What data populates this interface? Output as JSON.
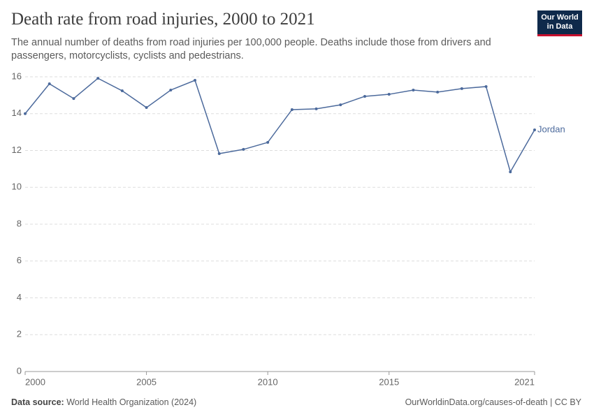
{
  "chart_data": {
    "type": "line",
    "title": "Death rate from road injuries, 2000 to 2021",
    "subtitle": "The annual number of deaths from road injuries per 100,000 people. Deaths include those from drivers and passengers, motorcyclists, cyclists and pedestrians.",
    "logo": [
      "Our World",
      "in Data"
    ],
    "source_label": "Data source:",
    "source": "World Health Organization (2024)",
    "footer": "OurWorldinData.org/causes-of-death | CC BY",
    "x": [
      2000,
      2001,
      2002,
      2003,
      2004,
      2005,
      2006,
      2007,
      2008,
      2009,
      2010,
      2011,
      2012,
      2013,
      2014,
      2015,
      2016,
      2017,
      2018,
      2019,
      2020,
      2021
    ],
    "series": [
      {
        "name": "Jordan",
        "color": "#4c6a9c",
        "values": [
          14.0,
          15.62,
          14.82,
          15.92,
          15.24,
          14.33,
          15.28,
          15.81,
          11.83,
          12.06,
          12.44,
          14.22,
          14.26,
          14.48,
          14.94,
          15.05,
          15.28,
          15.17,
          15.36,
          15.47,
          10.84,
          13.12
        ]
      }
    ],
    "xlim": [
      2000,
      2021
    ],
    "xticks": [
      2000,
      2005,
      2010,
      2015,
      2021
    ],
    "ylim": [
      0,
      16
    ],
    "yticks": [
      0,
      2,
      4,
      6,
      8,
      10,
      12,
      14,
      16
    ],
    "grid": true
  }
}
